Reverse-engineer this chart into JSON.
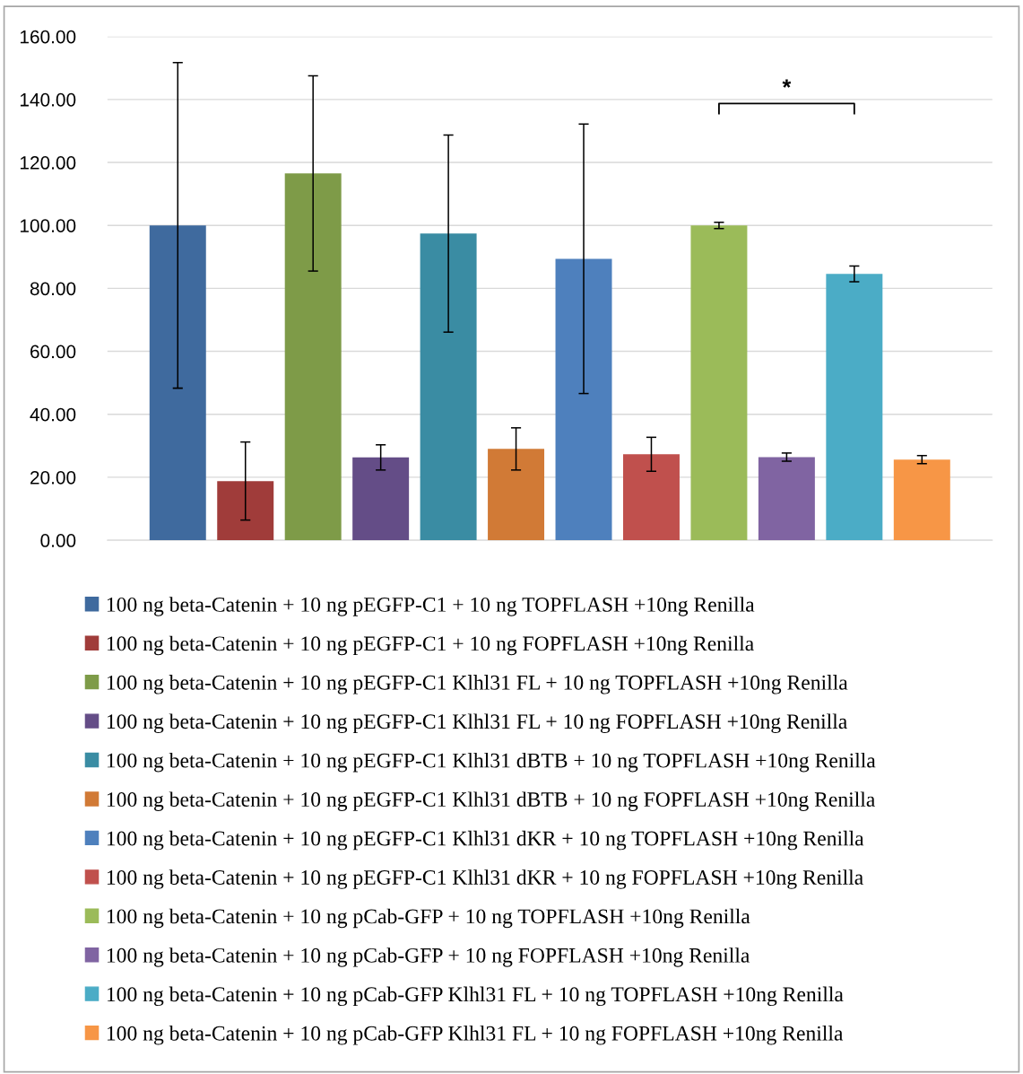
{
  "chart_data": {
    "type": "bar",
    "categories": [
      null
    ],
    "series": [
      {
        "name": "100 ng beta-Catenin + 10 ng pEGFP-C1 + 10 ng TOPFLASH +10ng Renilla",
        "color": "#3f6a9e",
        "values": [
          100.0
        ],
        "errors": [
          51.7
        ]
      },
      {
        "name": "100 ng beta-Catenin + 10 ng pEGFP-C1 + 10 ng FOPFLASH +10ng Renilla",
        "color": "#a03c3a",
        "values": [
          18.8
        ],
        "errors": [
          12.4
        ]
      },
      {
        "name": "100 ng beta-Catenin + 10 ng pEGFP-C1 Klhl31 FL + 10 ng TOPFLASH +10ng Renilla",
        "color": "#7e9b48",
        "values": [
          116.5
        ],
        "errors": [
          31.0
        ]
      },
      {
        "name": "100 ng beta-Catenin + 10 ng pEGFP-C1 Klhl31 FL + 10 ng FOPFLASH +10ng Renilla",
        "color": "#644d87",
        "values": [
          26.3
        ],
        "errors": [
          4.0
        ]
      },
      {
        "name": "100 ng beta-Catenin + 10 ng pEGFP-C1 Klhl31 dBTB + 10 ng TOPFLASH +10ng Renilla",
        "color": "#3a8ca3",
        "values": [
          97.4
        ],
        "errors": [
          31.3
        ]
      },
      {
        "name": "100 ng beta-Catenin + 10 ng pEGFP-C1 Klhl31 dBTB + 10 ng FOPFLASH +10ng Renilla",
        "color": "#d17a36",
        "values": [
          29.0
        ],
        "errors": [
          6.7
        ]
      },
      {
        "name": "100 ng beta-Catenin + 10 ng pEGFP-C1 Klhl31 dKR + 10 ng TOPFLASH +10ng Renilla",
        "color": "#4e80bd",
        "values": [
          89.4
        ],
        "errors": [
          42.8
        ]
      },
      {
        "name": "100 ng beta-Catenin + 10 ng pEGFP-C1 Klhl31 dKR + 10 ng FOPFLASH +10ng Renilla",
        "color": "#c0504d",
        "values": [
          27.3
        ],
        "errors": [
          5.4
        ]
      },
      {
        "name": "100 ng beta-Catenin + 10 ng pCab-GFP + 10 ng TOPFLASH +10ng Renilla",
        "color": "#9bbb59",
        "values": [
          100.0
        ],
        "errors": [
          1.0
        ]
      },
      {
        "name": "100 ng beta-Catenin + 10 ng pCab-GFP + 10 ng FOPFLASH +10ng Renilla",
        "color": "#8064a2",
        "values": [
          26.4
        ],
        "errors": [
          1.3
        ]
      },
      {
        "name": "100 ng beta-Catenin + 10 ng pCab-GFP Klhl31 FL + 10 ng TOPFLASH +10ng Renilla",
        "color": "#4bacc6",
        "values": [
          84.6
        ],
        "errors": [
          2.5
        ]
      },
      {
        "name": "100 ng beta-Catenin + 10 ng pCab-GFP Klhl31 FL + 10 ng FOPFLASH +10ng Renilla",
        "color": "#f79646",
        "values": [
          25.6
        ],
        "errors": [
          1.3
        ]
      }
    ],
    "ylim": [
      0,
      160
    ],
    "yticks": [
      {
        "value": 0,
        "label": "0.00"
      },
      {
        "value": 20,
        "label": "20.00"
      },
      {
        "value": 40,
        "label": "40.00"
      },
      {
        "value": 60,
        "label": "60.00"
      },
      {
        "value": 80,
        "label": "80.00"
      },
      {
        "value": 100,
        "label": "100.00"
      },
      {
        "value": 120,
        "label": "120.00"
      },
      {
        "value": 140,
        "label": "140.00"
      },
      {
        "value": 160,
        "label": "160.00"
      }
    ],
    "annotations": [
      "*"
    ],
    "grid": "y",
    "legend": "bottom",
    "tick_labels": "y"
  }
}
